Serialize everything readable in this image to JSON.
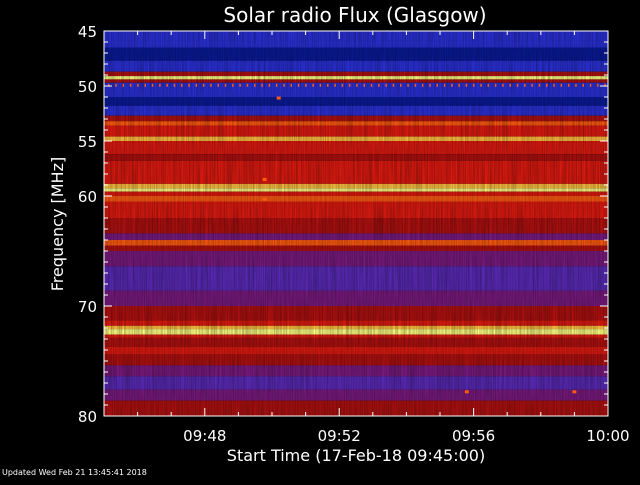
{
  "chart_data": {
    "type": "heatmap",
    "title": "Solar radio Flux (Glasgow)",
    "xlabel": "Start Time (17-Feb-18 09:45:00)",
    "ylabel": "Frequency [MHz]",
    "x_unit": "minutes after 09:45:00",
    "xlim": [
      0,
      15
    ],
    "ylim": [
      45,
      80
    ],
    "y_inverted": true,
    "x_ticks": [
      {
        "value": 3,
        "label": "09:48"
      },
      {
        "value": 7,
        "label": "09:52"
      },
      {
        "value": 11,
        "label": "09:56"
      },
      {
        "value": 15,
        "label": "10:00"
      }
    ],
    "y_ticks": [
      {
        "value": 45,
        "label": "45"
      },
      {
        "value": 50,
        "label": "50"
      },
      {
        "value": 55,
        "label": "55"
      },
      {
        "value": 60,
        "label": "60"
      },
      {
        "value": 70,
        "label": "70"
      },
      {
        "value": 80,
        "label": "80"
      }
    ],
    "colorscale": [
      "#0a1a9a",
      "#2a30d8",
      "#5a2ab8",
      "#7a1a80",
      "#b01010",
      "#e01a10",
      "#ff5a10",
      "#ffc040",
      "#ffff80"
    ],
    "bands": [
      {
        "from": 45.0,
        "to": 46.5,
        "level": 1
      },
      {
        "from": 46.5,
        "to": 47.7,
        "level": 0
      },
      {
        "from": 47.7,
        "to": 48.7,
        "level": 1
      },
      {
        "from": 48.7,
        "to": 49.1,
        "level": 4
      },
      {
        "from": 49.1,
        "to": 49.4,
        "level": 8
      },
      {
        "from": 49.4,
        "to": 49.7,
        "level": 4
      },
      {
        "from": 49.7,
        "to": 51.0,
        "level": 1
      },
      {
        "from": 51.0,
        "to": 51.8,
        "level": 0
      },
      {
        "from": 51.8,
        "to": 52.7,
        "level": 1
      },
      {
        "from": 52.7,
        "to": 53.2,
        "level": 4
      },
      {
        "from": 53.2,
        "to": 53.6,
        "level": 6
      },
      {
        "from": 53.6,
        "to": 54.6,
        "level": 5
      },
      {
        "from": 54.6,
        "to": 55.0,
        "level": 7
      },
      {
        "from": 55.0,
        "to": 56.2,
        "level": 5
      },
      {
        "from": 56.2,
        "to": 56.8,
        "level": 4
      },
      {
        "from": 56.8,
        "to": 58.9,
        "level": 5
      },
      {
        "from": 58.9,
        "to": 59.3,
        "level": 7
      },
      {
        "from": 59.3,
        "to": 59.6,
        "level": 8
      },
      {
        "from": 59.6,
        "to": 60.0,
        "level": 5
      },
      {
        "from": 60.0,
        "to": 60.5,
        "level": 6
      },
      {
        "from": 60.5,
        "to": 62.0,
        "level": 5
      },
      {
        "from": 62.0,
        "to": 63.4,
        "level": 4
      },
      {
        "from": 63.4,
        "to": 64.0,
        "level": 3
      },
      {
        "from": 64.0,
        "to": 64.5,
        "level": 6
      },
      {
        "from": 64.5,
        "to": 65.0,
        "level": 4
      },
      {
        "from": 65.0,
        "to": 66.4,
        "level": 3
      },
      {
        "from": 66.4,
        "to": 68.6,
        "level": 2
      },
      {
        "from": 68.6,
        "to": 70.0,
        "level": 3
      },
      {
        "from": 70.0,
        "to": 71.3,
        "level": 4
      },
      {
        "from": 71.3,
        "to": 71.8,
        "level": 5
      },
      {
        "from": 71.8,
        "to": 72.1,
        "level": 7
      },
      {
        "from": 72.1,
        "to": 72.6,
        "level": 8
      },
      {
        "from": 72.6,
        "to": 72.9,
        "level": 5
      },
      {
        "from": 72.9,
        "to": 73.7,
        "level": 4
      },
      {
        "from": 73.7,
        "to": 74.4,
        "level": 5
      },
      {
        "from": 74.4,
        "to": 75.4,
        "level": 4
      },
      {
        "from": 75.4,
        "to": 76.4,
        "level": 3
      },
      {
        "from": 76.4,
        "to": 77.6,
        "level": 2
      },
      {
        "from": 77.6,
        "to": 78.6,
        "level": 3
      },
      {
        "from": 78.6,
        "to": 80.0,
        "level": 4
      }
    ],
    "spots": [
      {
        "t": 5.2,
        "f": 51.1,
        "level": 6
      },
      {
        "t": 4.78,
        "f": 58.5,
        "level": 6
      },
      {
        "t": 4.78,
        "f": 60.3,
        "level": 6
      },
      {
        "t": 10.8,
        "f": 77.8,
        "level": 6
      },
      {
        "t": 14.0,
        "f": 77.8,
        "level": 6
      }
    ]
  },
  "footer": {
    "updated": "Updated Wed Feb 21 13:45:41 2018"
  }
}
